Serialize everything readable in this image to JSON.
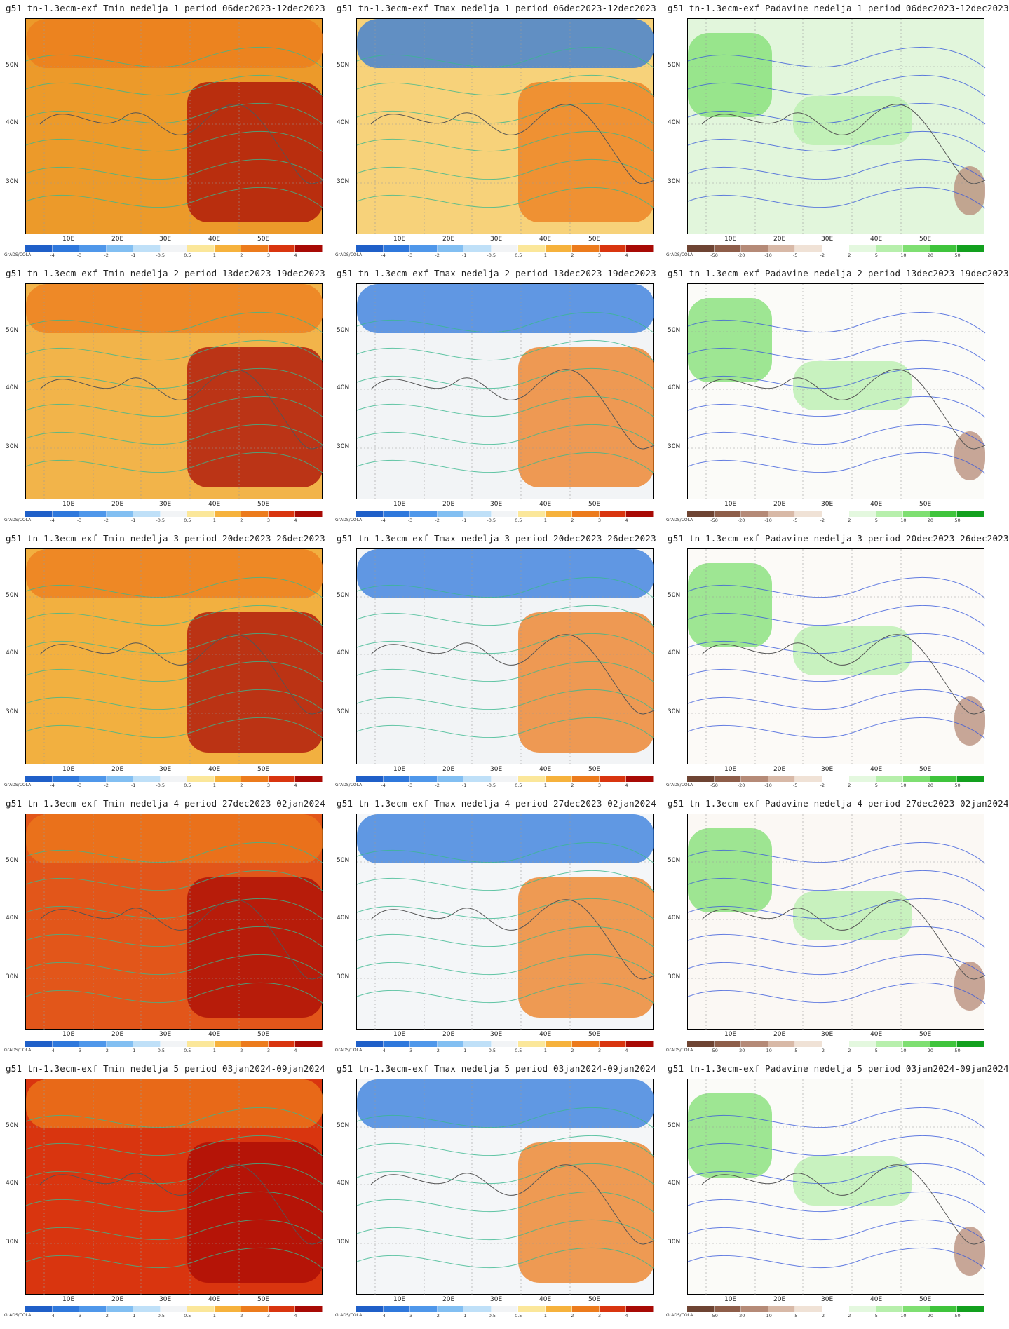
{
  "brand": "GrADS/COLA",
  "axes": {
    "y_labels": [
      "50N",
      "40N",
      "30N"
    ],
    "x_labels": [
      "10E",
      "20E",
      "30E",
      "40E",
      "50E"
    ]
  },
  "legends": {
    "temp": {
      "ticks": [
        "-4",
        "-3",
        "-2",
        "-1",
        "-0.5",
        "0.5",
        "1",
        "2",
        "3",
        "4"
      ],
      "colors": [
        "#1f5fc8",
        "#2f78dc",
        "#4f97ea",
        "#82bff2",
        "#bfe0f8",
        "#f2f4f6",
        "#fbe79a",
        "#f6b23c",
        "#ec7b1c",
        "#d9350f",
        "#a80a05"
      ]
    },
    "precip": {
      "ticks": [
        "-50",
        "-20",
        "-10",
        "-5",
        "-2",
        "2",
        "5",
        "10",
        "20",
        "50"
      ],
      "colors": [
        "#6e4433",
        "#8e5e4a",
        "#b58a77",
        "#d8b9a7",
        "#f0e2d6",
        "#ffffff",
        "#e4f8df",
        "#b7efac",
        "#7fdf72",
        "#3fc43c",
        "#12a01e"
      ]
    }
  },
  "panels": [
    {
      "title": "g51 tn-1.3ecm-exf Tmin nedelja 1 period 06dec2023-12dec2023",
      "legend": "temp",
      "base": "#ec9a2a"
    },
    {
      "title": "g51 tn-1.3ecm-exf Tmax nedelja 1 period 06dec2023-12dec2023",
      "legend": "temp",
      "base": "#f7d27a"
    },
    {
      "title": "g51 tn-1.3ecm-exf Padavine nedelja 1 period 06dec2023-12dec2023",
      "legend": "precip",
      "base": "#e2f6dc"
    },
    {
      "title": "g51 tn-1.3ecm-exf Tmin nedelja 2 period 13dec2023-19dec2023",
      "legend": "temp",
      "base": "#f2b44a"
    },
    {
      "title": "g51 tn-1.3ecm-exf Tmax nedelja 2 period 13dec2023-19dec2023",
      "legend": "temp",
      "base": "#f2f4f6"
    },
    {
      "title": "g51 tn-1.3ecm-exf Padavine nedelja 2 period 13dec2023-19dec2023",
      "legend": "precip",
      "base": "#fbfbf8"
    },
    {
      "title": "g51 tn-1.3ecm-exf Tmin nedelja 3 period 20dec2023-26dec2023",
      "legend": "temp",
      "base": "#f2b040"
    },
    {
      "title": "g51 tn-1.3ecm-exf Tmax nedelja 3 period 20dec2023-26dec2023",
      "legend": "temp",
      "base": "#f2f4f6"
    },
    {
      "title": "g51 tn-1.3ecm-exf Padavine nedelja 3 period 20dec2023-26dec2023",
      "legend": "precip",
      "base": "#fcfaf7"
    },
    {
      "title": "g51 tn-1.3ecm-exf Tmin nedelja 4 period 27dec2023-02jan2024",
      "legend": "temp",
      "base": "#e2561a"
    },
    {
      "title": "g51 tn-1.3ecm-exf Tmax nedelja 4 period 27dec2023-02jan2024",
      "legend": "temp",
      "base": "#f4f6f8"
    },
    {
      "title": "g51 tn-1.3ecm-exf Padavine nedelja 4 period 27dec2023-02jan2024",
      "legend": "precip",
      "base": "#fbf8f4"
    },
    {
      "title": "g51 tn-1.3ecm-exf Tmin nedelja 5 period 03jan2024-09jan2024",
      "legend": "temp",
      "base": "#d9350f"
    },
    {
      "title": "g51 tn-1.3ecm-exf Tmax nedelja 5 period 03jan2024-09jan2024",
      "legend": "temp",
      "base": "#f4f6f8"
    },
    {
      "title": "g51 tn-1.3ecm-exf Padavine nedelja 5 period 03jan2024-09jan2024",
      "legend": "precip",
      "base": "#fbfbf8"
    }
  ]
}
